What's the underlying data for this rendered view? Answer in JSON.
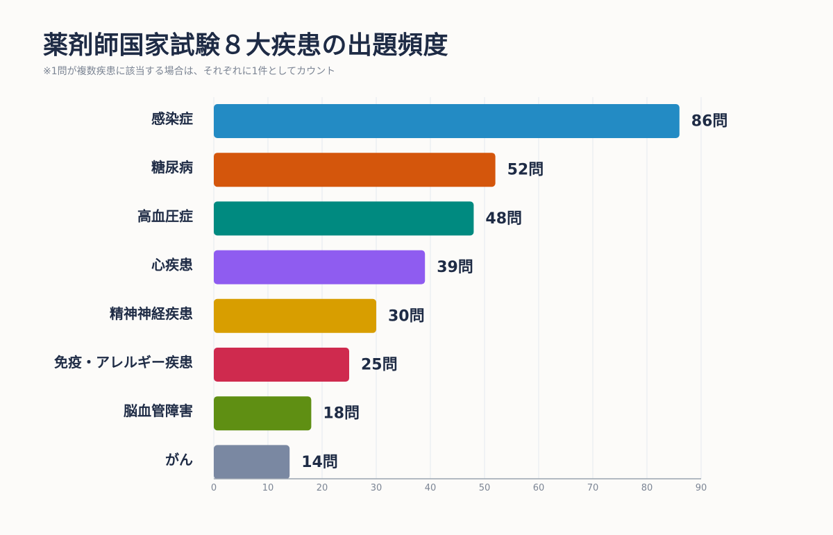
{
  "title": "薬剤師国家試験８大疾患の出題頻度",
  "subtitle": "※1問が複数疾患に該当する場合は、それぞれに1件としてカウント",
  "chart_data": {
    "type": "bar",
    "orientation": "horizontal",
    "categories": [
      "感染症",
      "糖尿病",
      "高血圧症",
      "心疾患",
      "精神神経疾患",
      "免疫・アレルギー疾患",
      "脳血管障害",
      "がん"
    ],
    "values": [
      86,
      52,
      48,
      39,
      30,
      25,
      18,
      14
    ],
    "value_suffix": "問",
    "colors": [
      "#238bc4",
      "#d4560c",
      "#008a80",
      "#8f5cf0",
      "#d89e00",
      "#cf2a4e",
      "#5f8f13",
      "#7a88a2"
    ],
    "xlim": [
      0,
      90
    ],
    "xticks": [
      0,
      10,
      20,
      30,
      40,
      50,
      60,
      70,
      80,
      90
    ],
    "grid": "vertical",
    "xlabel": "",
    "ylabel": ""
  }
}
